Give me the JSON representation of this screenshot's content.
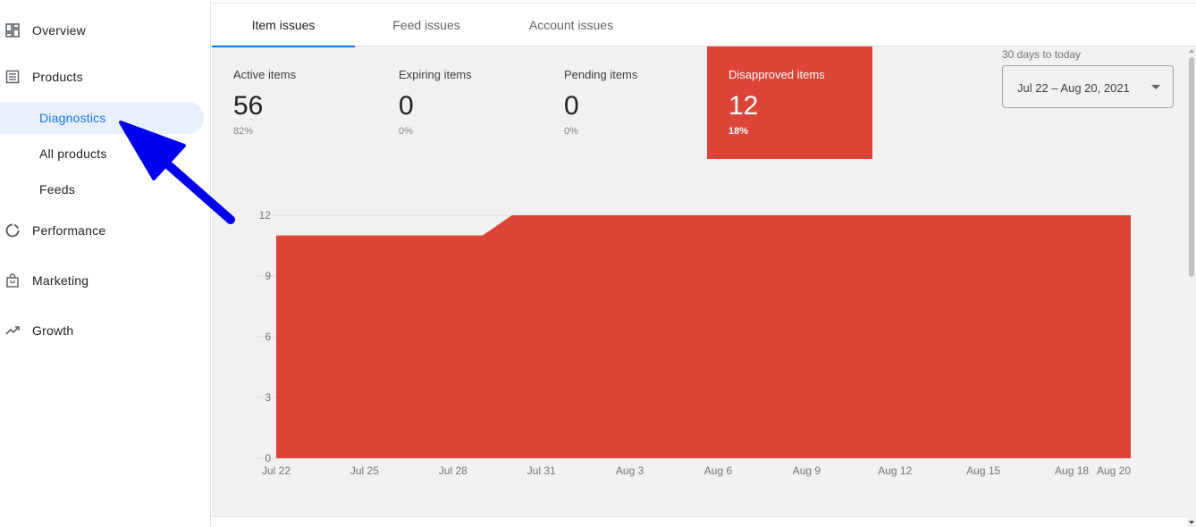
{
  "sidebar": {
    "items": [
      {
        "label": "Overview",
        "icon": "dashboard-icon"
      },
      {
        "label": "Products",
        "icon": "list-icon"
      },
      {
        "label": "Diagnostics",
        "sub": true,
        "active": true
      },
      {
        "label": "All products",
        "sub": true
      },
      {
        "label": "Feeds",
        "sub": true
      },
      {
        "label": "Performance",
        "icon": "donut-chart-icon"
      },
      {
        "label": "Marketing",
        "icon": "shopping-bag-icon"
      },
      {
        "label": "Growth",
        "icon": "trending-up-icon"
      }
    ]
  },
  "tabs": [
    {
      "label": "Item issues",
      "active": true
    },
    {
      "label": "Feed issues"
    },
    {
      "label": "Account issues"
    }
  ],
  "cards": [
    {
      "label": "Active items",
      "value": "56",
      "pct": "82%"
    },
    {
      "label": "Expiring items",
      "value": "0",
      "pct": "0%"
    },
    {
      "label": "Pending items",
      "value": "0",
      "pct": "0%"
    },
    {
      "label": "Disapproved items",
      "value": "12",
      "pct": "18%",
      "highlighted": true
    }
  ],
  "date_range": {
    "label": "30 days to today",
    "value": "Jul 22 – Aug 20, 2021"
  },
  "colors": {
    "accent": "#1a73e8",
    "disapproved": "#db4437",
    "annotation_arrow": "#0000ee"
  },
  "chart_data": {
    "type": "area",
    "x": [
      "Jul 22",
      "Jul 23",
      "Jul 24",
      "Jul 25",
      "Jul 26",
      "Jul 27",
      "Jul 28",
      "Jul 29",
      "Jul 30",
      "Jul 31",
      "Aug 1",
      "Aug 2",
      "Aug 3",
      "Aug 4",
      "Aug 5",
      "Aug 6",
      "Aug 7",
      "Aug 8",
      "Aug 9",
      "Aug 10",
      "Aug 11",
      "Aug 12",
      "Aug 13",
      "Aug 14",
      "Aug 15",
      "Aug 16",
      "Aug 17",
      "Aug 18",
      "Aug 19",
      "Aug 20"
    ],
    "series": [
      {
        "values": [
          11,
          11,
          11,
          11,
          11,
          11,
          11,
          11,
          12,
          12,
          12,
          12,
          12,
          12,
          12,
          12,
          12,
          12,
          12,
          12,
          12,
          12,
          12,
          12,
          12,
          12,
          12,
          12,
          12,
          12
        ],
        "color": "#db4437"
      }
    ],
    "x_tick_labels": [
      "Jul 22",
      "Jul 25",
      "Jul 28",
      "Jul 31",
      "Aug 3",
      "Aug 6",
      "Aug 9",
      "Aug 12",
      "Aug 15",
      "Aug 18",
      "Aug 20"
    ],
    "y_ticks": [
      "0",
      "3",
      "6",
      "9",
      "12"
    ],
    "ylim": [
      0,
      12
    ],
    "grid": true,
    "title": "",
    "xlabel": "",
    "ylabel": ""
  }
}
